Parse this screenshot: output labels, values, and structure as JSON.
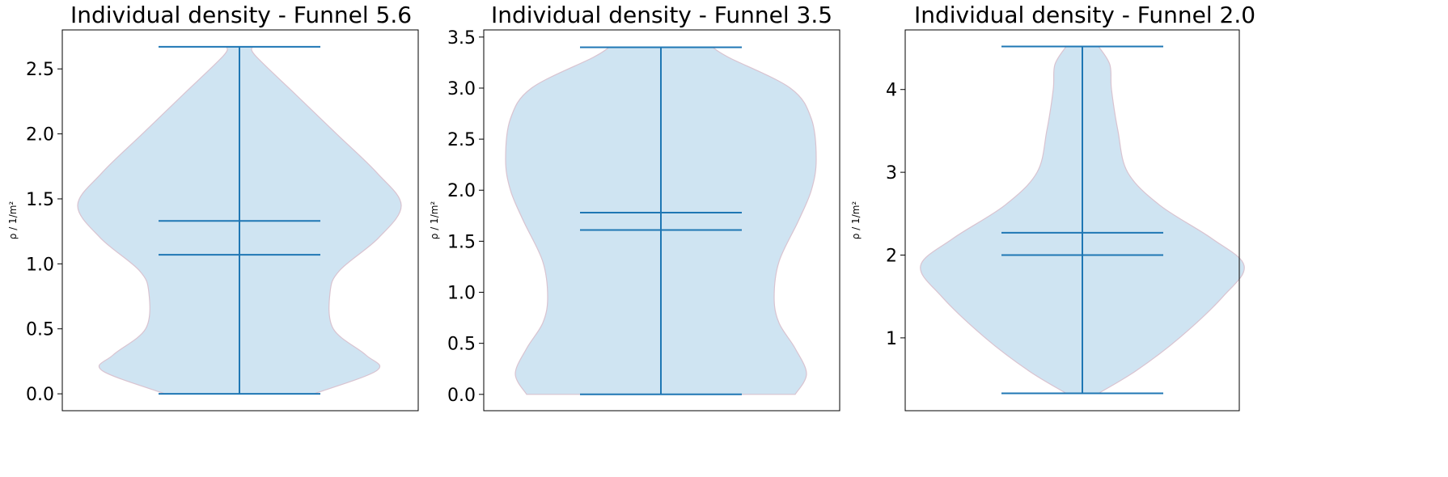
{
  "chart_data": [
    {
      "type": "violin",
      "title": "Individual density - Funnel 5.6",
      "ylabel": "ρ / 1/m²",
      "ylim": [
        -0.13,
        2.8
      ],
      "yticks": [
        0.0,
        0.5,
        1.0,
        1.5,
        2.0,
        2.5
      ],
      "ytick_labels": [
        "0.0",
        "0.5",
        "1.0",
        "1.5",
        "2.0",
        "2.5"
      ],
      "min": 0.0,
      "max": 2.67,
      "mean": 1.33,
      "median": 1.07,
      "density_profile": [
        [
          0.0,
          0.46
        ],
        [
          0.18,
          0.85
        ],
        [
          0.3,
          0.78
        ],
        [
          0.5,
          0.58
        ],
        [
          0.78,
          0.56
        ],
        [
          0.95,
          0.62
        ],
        [
          1.2,
          0.86
        ],
        [
          1.45,
          1.0
        ],
        [
          1.7,
          0.85
        ],
        [
          2.0,
          0.6
        ],
        [
          2.3,
          0.35
        ],
        [
          2.6,
          0.1
        ],
        [
          2.67,
          0.08
        ]
      ],
      "fill_color": "#cfe4f2",
      "line_color": "#1f77b4"
    },
    {
      "type": "violin",
      "title": "Individual density - Funnel 3.5",
      "ylabel": "ρ / 1/m²",
      "ylim": [
        -0.16,
        3.57
      ],
      "yticks": [
        0.0,
        0.5,
        1.0,
        1.5,
        2.0,
        2.5,
        3.0,
        3.5
      ],
      "ytick_labels": [
        "0.0",
        "0.5",
        "1.0",
        "1.5",
        "2.0",
        "2.5",
        "3.0",
        "3.5"
      ],
      "min": 0.0,
      "max": 3.4,
      "mean": 1.78,
      "median": 1.61,
      "density_profile": [
        [
          0.0,
          0.83
        ],
        [
          0.2,
          0.9
        ],
        [
          0.45,
          0.83
        ],
        [
          0.7,
          0.73
        ],
        [
          0.95,
          0.7
        ],
        [
          1.3,
          0.73
        ],
        [
          1.7,
          0.85
        ],
        [
          2.0,
          0.93
        ],
        [
          2.3,
          0.96
        ],
        [
          2.7,
          0.93
        ],
        [
          3.0,
          0.8
        ],
        [
          3.3,
          0.42
        ],
        [
          3.4,
          0.32
        ]
      ],
      "fill_color": "#cfe4f2",
      "line_color": "#1f77b4"
    },
    {
      "type": "violin",
      "title": "Individual density - Funnel 2.0",
      "ylabel": "ρ / 1/m²",
      "ylim": [
        0.12,
        4.72
      ],
      "yticks": [
        1,
        2,
        3,
        4
      ],
      "ytick_labels": [
        "1",
        "2",
        "3",
        "4"
      ],
      "min": 0.33,
      "max": 4.52,
      "mean": 2.27,
      "median": 2.0,
      "density_profile": [
        [
          0.33,
          0.1
        ],
        [
          0.6,
          0.33
        ],
        [
          1.0,
          0.6
        ],
        [
          1.5,
          0.87
        ],
        [
          1.87,
          1.0
        ],
        [
          2.2,
          0.8
        ],
        [
          2.6,
          0.48
        ],
        [
          3.0,
          0.28
        ],
        [
          3.5,
          0.22
        ],
        [
          4.0,
          0.18
        ],
        [
          4.3,
          0.17
        ],
        [
          4.52,
          0.1
        ]
      ],
      "fill_color": "#cfe4f2",
      "line_color": "#1f77b4"
    }
  ]
}
